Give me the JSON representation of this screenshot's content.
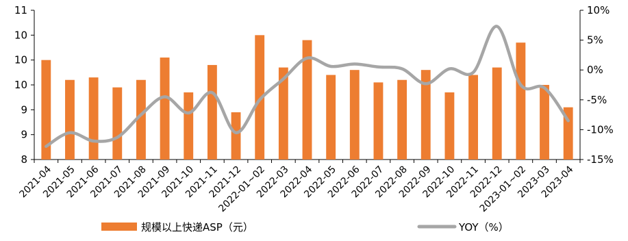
{
  "chart_data": {
    "type": "bar+line",
    "categories": [
      "2021-04",
      "2021-05",
      "2021-06",
      "2021-07",
      "2021-08",
      "2021-09",
      "2021-10",
      "2021-11",
      "2021-12",
      "2022-01~02",
      "2022-03",
      "2022-04",
      "2022-05",
      "2022-06",
      "2022-07",
      "2022-08",
      "2022-09",
      "2022-10",
      "2022-11",
      "2022-12",
      "2023-01~02",
      "2023-03",
      "2023-04"
    ],
    "left_axis": {
      "tick_values": [
        8,
        8.5,
        9,
        9.5,
        10,
        10.5,
        11
      ],
      "tick_labels": [
        "8",
        "9",
        "9",
        "10",
        "10",
        "10",
        "11"
      ],
      "ylim": [
        8,
        11
      ]
    },
    "right_axis": {
      "tick_values": [
        -15,
        -10,
        -5,
        0,
        5,
        10
      ],
      "tick_labels": [
        "-15%",
        "-10%",
        "-5%",
        "0%",
        "5%",
        "10%"
      ],
      "ylim": [
        -15,
        10
      ]
    },
    "series": [
      {
        "name": "规模以上快递ASP（元）",
        "type": "bar",
        "axis": "left",
        "color": "#ED7D31",
        "values": [
          10.0,
          9.6,
          9.65,
          9.45,
          9.6,
          10.05,
          9.35,
          9.9,
          8.95,
          10.5,
          9.85,
          10.4,
          9.7,
          9.8,
          9.55,
          9.6,
          9.8,
          9.35,
          9.7,
          9.85,
          10.35,
          9.5,
          9.05
        ]
      },
      {
        "name": "YOY（%）",
        "type": "line",
        "axis": "right",
        "color": "#A6A6A6",
        "values": [
          -12.8,
          -10.5,
          -11.9,
          -11.3,
          -7.5,
          -4.5,
          -7.2,
          -3.8,
          -10.5,
          -5.0,
          -1.5,
          2.0,
          0.6,
          1.0,
          0.5,
          0.2,
          -2.3,
          0.2,
          -0.4,
          7.3,
          -2.5,
          -3.0,
          -8.5
        ]
      }
    ],
    "grid": false,
    "legend_position": "bottom"
  },
  "legend": {
    "bar_label": "规模以上快递ASP（元）",
    "line_label": "YOY（%）"
  }
}
